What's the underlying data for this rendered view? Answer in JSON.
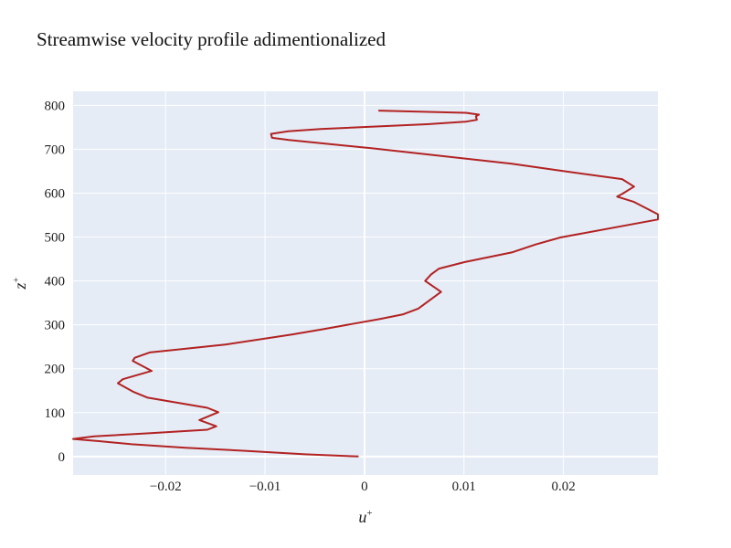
{
  "chart_data": {
    "type": "line",
    "title": "Streamwise velocity profile adimentionalized",
    "xlabel": "u",
    "xlabel_sup": "+",
    "ylabel": "z",
    "ylabel_sup": "+",
    "xlim": [
      -0.0293,
      0.0295
    ],
    "ylim": [
      -42,
      832
    ],
    "xticks": [
      -0.02,
      -0.01,
      0,
      0.01,
      0.02
    ],
    "xtick_labels": [
      "−0.02",
      "−0.01",
      "0",
      "0.01",
      "0.02"
    ],
    "yticks": [
      0,
      100,
      200,
      300,
      400,
      500,
      600,
      700,
      800
    ],
    "ytick_labels": [
      "0",
      "100",
      "200",
      "300",
      "400",
      "500",
      "600",
      "700",
      "800"
    ],
    "grid": true,
    "plot_background": "#e5ecf6",
    "grid_color": "#ffffff",
    "series": [
      {
        "color": "#b22222",
        "points": [
          [
            -0.0006,
            0
          ],
          [
            -0.006,
            5
          ],
          [
            -0.012,
            13
          ],
          [
            -0.018,
            20
          ],
          [
            -0.0234,
            28
          ],
          [
            -0.0267,
            35
          ],
          [
            -0.0293,
            40
          ],
          [
            -0.0272,
            46
          ],
          [
            -0.0215,
            53
          ],
          [
            -0.0158,
            61
          ],
          [
            -0.0149,
            69
          ],
          [
            -0.0166,
            83
          ],
          [
            -0.0147,
            101
          ],
          [
            -0.0158,
            111
          ],
          [
            -0.0218,
            134
          ],
          [
            -0.0232,
            147
          ],
          [
            -0.0248,
            167
          ],
          [
            -0.0243,
            176
          ],
          [
            -0.0214,
            195
          ],
          [
            -0.0233,
            218
          ],
          [
            -0.0231,
            225
          ],
          [
            -0.0216,
            237
          ],
          [
            -0.014,
            255
          ],
          [
            -0.0073,
            278
          ],
          [
            -0.0042,
            290
          ],
          [
            -0.0015,
            301
          ],
          [
            0.0015,
            313
          ],
          [
            0.0039,
            324
          ],
          [
            0.0054,
            337
          ],
          [
            0.0077,
            375
          ],
          [
            0.0061,
            400
          ],
          [
            0.0067,
            415
          ],
          [
            0.0075,
            428
          ],
          [
            0.0101,
            443
          ],
          [
            0.0148,
            465
          ],
          [
            0.0172,
            483
          ],
          [
            0.0197,
            499
          ],
          [
            0.0295,
            540
          ],
          [
            0.0295,
            552
          ],
          [
            0.0271,
            580
          ],
          [
            0.0254,
            592
          ],
          [
            0.0259,
            598
          ],
          [
            0.0271,
            615
          ],
          [
            0.0259,
            632
          ],
          [
            0.0198,
            651
          ],
          [
            0.0148,
            667
          ],
          [
            0.0009,
            702
          ],
          [
            -0.0076,
            721
          ],
          [
            -0.0093,
            726
          ],
          [
            -0.0094,
            735
          ],
          [
            -0.0077,
            741
          ],
          [
            -0.0044,
            746
          ],
          [
            0.0063,
            757
          ],
          [
            0.0102,
            763
          ],
          [
            0.0113,
            767
          ],
          [
            0.0112,
            775
          ],
          [
            0.0115,
            779
          ],
          [
            0.0102,
            783
          ],
          [
            0.0014,
            788
          ]
        ]
      }
    ]
  }
}
